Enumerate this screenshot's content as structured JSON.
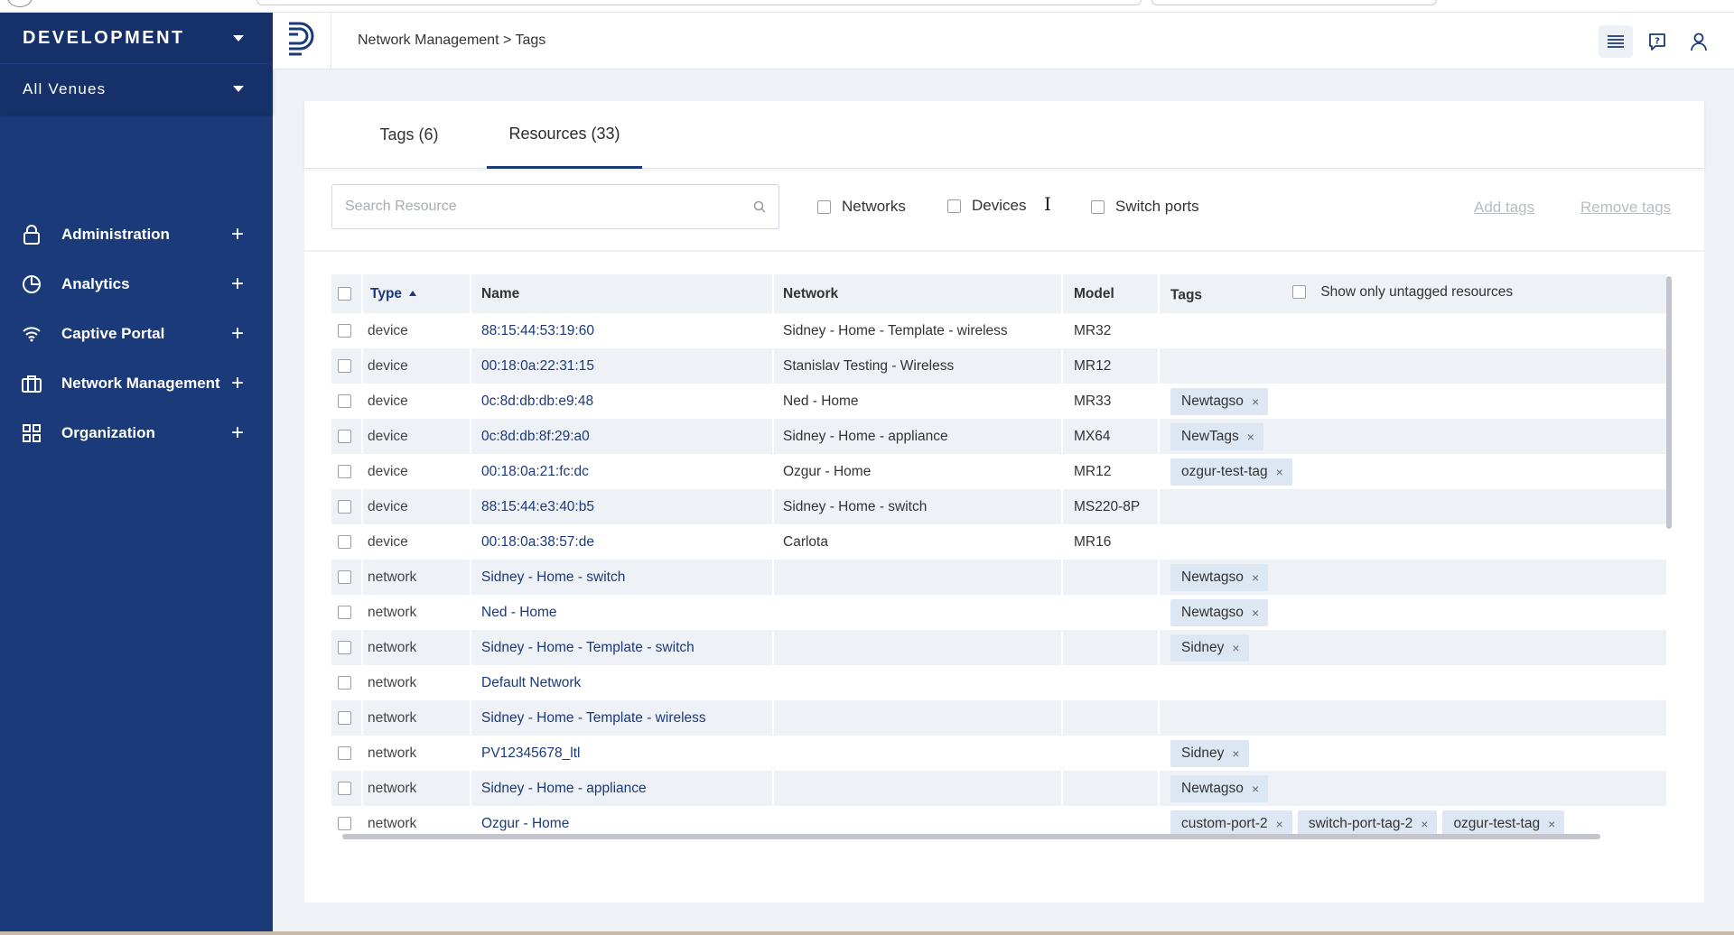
{
  "sidebar": {
    "environment": "DEVELOPMENT",
    "venue": "All Venues",
    "items": [
      {
        "label": "Administration",
        "icon": "lock-icon"
      },
      {
        "label": "Analytics",
        "icon": "pie-chart-icon"
      },
      {
        "label": "Captive Portal",
        "icon": "wifi-icon"
      },
      {
        "label": "Network Management",
        "icon": "briefcase-icon"
      },
      {
        "label": "Organization",
        "icon": "grid-icon"
      }
    ],
    "expand_symbol": "+"
  },
  "header": {
    "breadcrumb": "Network Management > Tags"
  },
  "tabs": [
    {
      "label": "Tags (6)",
      "active": false
    },
    {
      "label": "Resources (33)",
      "active": true
    }
  ],
  "filters": {
    "search_placeholder": "Search Resource",
    "networks_label": "Networks",
    "devices_label": "Devices",
    "switch_ports_label": "Switch ports",
    "add_tags_label": "Add tags",
    "remove_tags_label": "Remove tags"
  },
  "table": {
    "headers": {
      "type": "Type",
      "name": "Name",
      "network": "Network",
      "model": "Model",
      "tags": "Tags",
      "untagged_label": "Show only untagged resources"
    },
    "rows": [
      {
        "type": "device",
        "name": "88:15:44:53:19:60",
        "network": "Sidney - Home - Template - wireless",
        "model": "MR32",
        "tags": []
      },
      {
        "type": "device",
        "name": "00:18:0a:22:31:15",
        "network": "Stanislav Testing - Wireless",
        "model": "MR12",
        "tags": []
      },
      {
        "type": "device",
        "name": "0c:8d:db:db:e9:48",
        "network": "Ned - Home",
        "model": "MR33",
        "tags": [
          "Newtagso"
        ]
      },
      {
        "type": "device",
        "name": "0c:8d:db:8f:29:a0",
        "network": "Sidney - Home - appliance",
        "model": "MX64",
        "tags": [
          "NewTags"
        ]
      },
      {
        "type": "device",
        "name": "00:18:0a:21:fc:dc",
        "network": "Ozgur - Home",
        "model": "MR12",
        "tags": [
          "ozgur-test-tag"
        ]
      },
      {
        "type": "device",
        "name": "88:15:44:e3:40:b5",
        "network": "Sidney - Home - switch",
        "model": "MS220-8P",
        "tags": []
      },
      {
        "type": "device",
        "name": "00:18:0a:38:57:de",
        "network": "Carlota",
        "model": "MR16",
        "tags": []
      },
      {
        "type": "network",
        "name": "Sidney - Home - switch",
        "network": "",
        "model": "",
        "tags": [
          "Newtagso"
        ]
      },
      {
        "type": "network",
        "name": "Ned - Home",
        "network": "",
        "model": "",
        "tags": [
          "Newtagso"
        ]
      },
      {
        "type": "network",
        "name": "Sidney - Home - Template - switch",
        "network": "",
        "model": "",
        "tags": [
          "Sidney"
        ]
      },
      {
        "type": "network",
        "name": "Default Network",
        "network": "",
        "model": "",
        "tags": []
      },
      {
        "type": "network",
        "name": "Sidney - Home - Template - wireless",
        "network": "",
        "model": "",
        "tags": []
      },
      {
        "type": "network",
        "name": "PV12345678_ltl",
        "network": "",
        "model": "",
        "tags": [
          "Sidney"
        ]
      },
      {
        "type": "network",
        "name": "Sidney - Home - appliance",
        "network": "",
        "model": "",
        "tags": [
          "Newtagso"
        ]
      },
      {
        "type": "network",
        "name": "Ozgur - Home",
        "network": "",
        "model": "",
        "tags": [
          "custom-port-2",
          "switch-port-tag-2",
          "ozgur-test-tag"
        ]
      }
    ],
    "tag_remove_symbol": "×"
  },
  "colors": {
    "sidebar": "#1b3a7a",
    "link": "#1b3a7a",
    "tag_bg": "#dde7f3",
    "row_alt": "#eef1f6"
  }
}
